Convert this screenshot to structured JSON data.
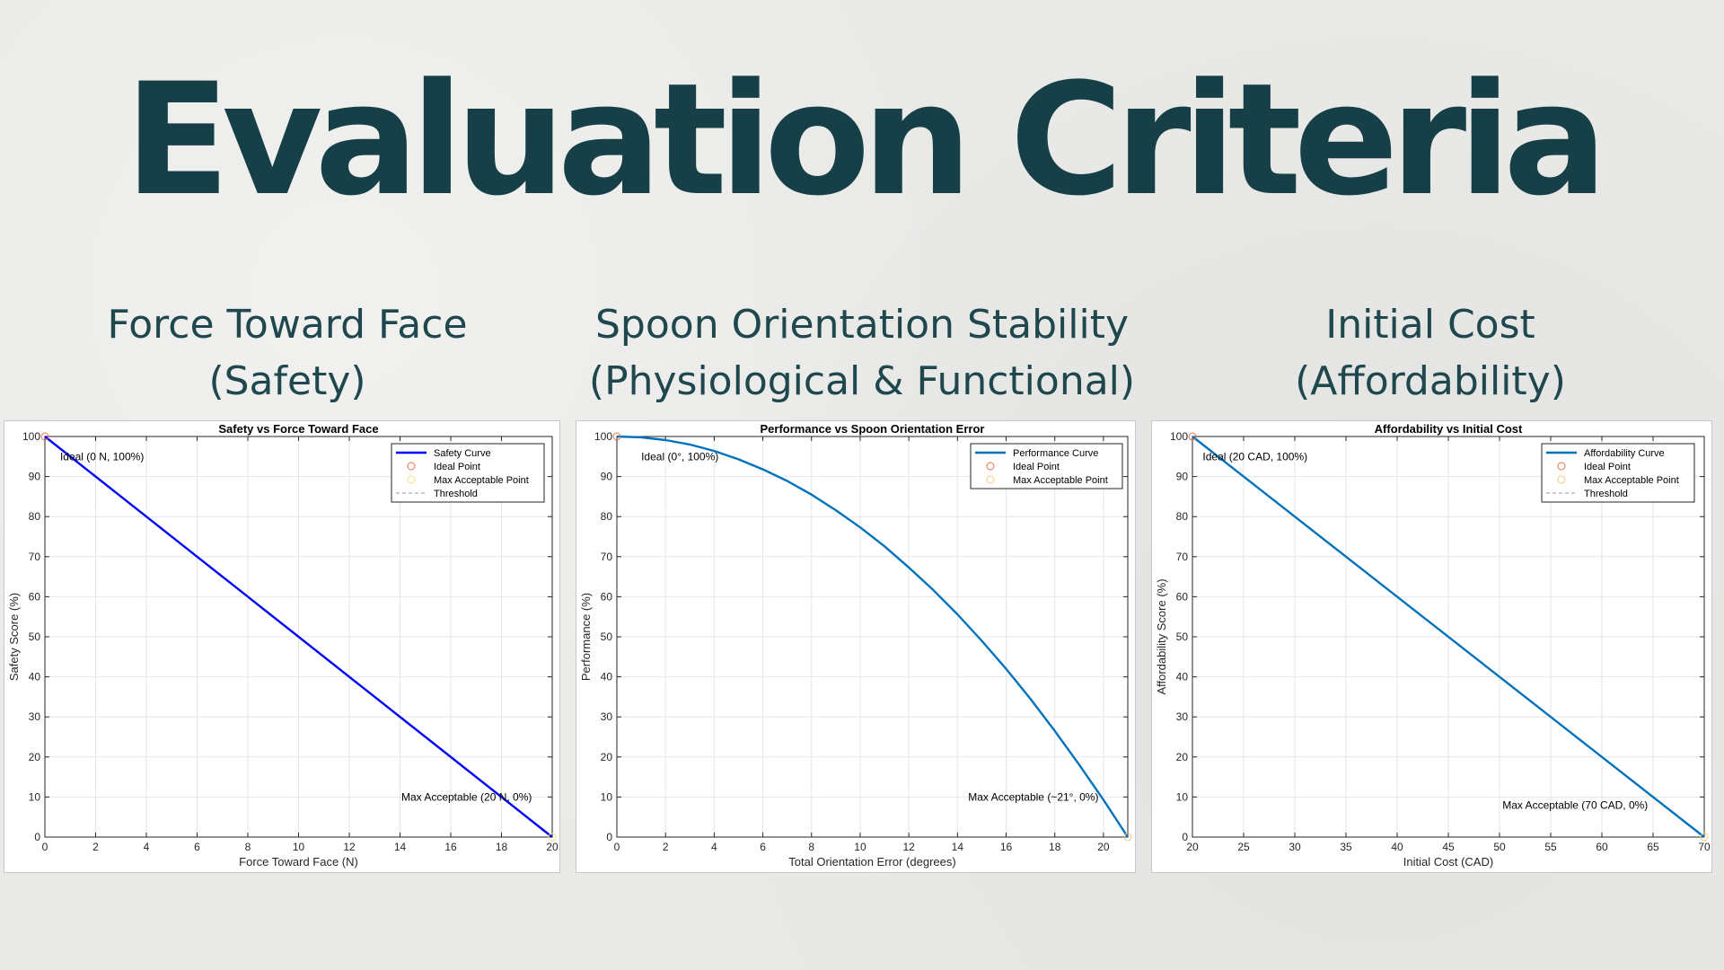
{
  "page": {
    "title": "Evaluation Criteria"
  },
  "panels": [
    {
      "title_line1": "Force Toward Face",
      "title_line2": "(Safety)"
    },
    {
      "title_line1": "Spoon Orientation Stability",
      "title_line2": "(Physiological & Functional)"
    },
    {
      "title_line1": "Initial Cost",
      "title_line2": "(Affordability)"
    }
  ],
  "chart_data": [
    {
      "type": "line",
      "title": "Safety vs Force Toward Face",
      "xlabel": "Force Toward Face (N)",
      "ylabel": "Safety Score (%)",
      "xlim": [
        0,
        20
      ],
      "ylim": [
        0,
        100
      ],
      "xticks": [
        0,
        2,
        4,
        6,
        8,
        10,
        12,
        14,
        16,
        18,
        20
      ],
      "yticks": [
        0,
        10,
        20,
        30,
        40,
        50,
        60,
        70,
        80,
        90,
        100
      ],
      "grid": true,
      "legend_position": "top-right",
      "legend": [
        {
          "label": "Safety Curve",
          "kind": "line",
          "color": "#0000ff"
        },
        {
          "label": "Ideal Point",
          "kind": "circle",
          "color": "#e8734a"
        },
        {
          "label": "Max Acceptable Point",
          "kind": "circle",
          "color": "#f2df7a"
        },
        {
          "label": "Threshold",
          "kind": "dash",
          "color": "#999999"
        }
      ],
      "series": [
        {
          "name": "Safety Curve",
          "color": "#0000ff",
          "x": [
            0,
            20
          ],
          "y": [
            100,
            0
          ]
        }
      ],
      "annotations": [
        {
          "text": "Ideal (0 N, 100%)",
          "x": 0.6,
          "y": 95,
          "anchor": "start"
        },
        {
          "text": "Max Acceptable (20 N, 0%)",
          "x": 19.2,
          "y": 10,
          "anchor": "end"
        }
      ],
      "points": [
        {
          "x": 0,
          "y": 100,
          "color": "#e8734a"
        },
        {
          "x": 20,
          "y": 0,
          "color": "#f2df7a"
        }
      ]
    },
    {
      "type": "line",
      "title": "Performance vs Spoon Orientation Error",
      "xlabel": "Total Orientation Error (degrees)",
      "ylabel": "Performance (%)",
      "xlim": [
        0,
        21
      ],
      "ylim": [
        0,
        100
      ],
      "xticks": [
        0,
        2,
        4,
        6,
        8,
        10,
        12,
        14,
        16,
        18,
        20
      ],
      "yticks": [
        0,
        10,
        20,
        30,
        40,
        50,
        60,
        70,
        80,
        90,
        100
      ],
      "grid": true,
      "legend_position": "top-right",
      "legend": [
        {
          "label": "Performance Curve",
          "kind": "line",
          "color": "#0072bd"
        },
        {
          "label": "Ideal Point",
          "kind": "circle",
          "color": "#e8734a"
        },
        {
          "label": "Max Acceptable Point",
          "kind": "circle",
          "color": "#f2c879"
        }
      ],
      "series": [
        {
          "name": "Performance Curve",
          "color": "#0072bd",
          "x": [
            0,
            1,
            2,
            3,
            4,
            5,
            6,
            7,
            8,
            9,
            10,
            11,
            12,
            13,
            14,
            15,
            16,
            17,
            18,
            19,
            20,
            21
          ],
          "y": [
            100,
            99.8,
            99.1,
            98.0,
            96.4,
            94.3,
            91.8,
            88.9,
            85.5,
            81.6,
            77.3,
            72.6,
            67.3,
            61.7,
            55.6,
            49.0,
            42.0,
            34.5,
            26.5,
            18.1,
            9.3,
            0
          ]
        }
      ],
      "annotations": [
        {
          "text": "Ideal (0°, 100%)",
          "x": 1.0,
          "y": 95,
          "anchor": "start"
        },
        {
          "text": "Max Acceptable (~21°, 0%)",
          "x": 19.8,
          "y": 10,
          "anchor": "end"
        }
      ],
      "points": [
        {
          "x": 0,
          "y": 100,
          "color": "#e8734a"
        },
        {
          "x": 21,
          "y": 0,
          "color": "#f2c879"
        }
      ]
    },
    {
      "type": "line",
      "title": "Affordability vs Initial Cost",
      "xlabel": "Initial Cost (CAD)",
      "ylabel": "Affordability Score (%)",
      "xlim": [
        20,
        70
      ],
      "ylim": [
        0,
        100
      ],
      "xticks": [
        20,
        25,
        30,
        35,
        40,
        45,
        50,
        55,
        60,
        65,
        70
      ],
      "yticks": [
        0,
        10,
        20,
        30,
        40,
        50,
        60,
        70,
        80,
        90,
        100
      ],
      "grid": true,
      "legend_position": "top-right",
      "legend": [
        {
          "label": "Affordability Curve",
          "kind": "line",
          "color": "#0072bd"
        },
        {
          "label": "Ideal Point",
          "kind": "circle",
          "color": "#e8734a"
        },
        {
          "label": "Max Acceptable Point",
          "kind": "circle",
          "color": "#f2c879"
        },
        {
          "label": "Threshold",
          "kind": "dash",
          "color": "#999999"
        }
      ],
      "series": [
        {
          "name": "Affordability Curve",
          "color": "#0072bd",
          "x": [
            20,
            70
          ],
          "y": [
            100,
            0
          ]
        }
      ],
      "annotations": [
        {
          "text": "Ideal (20 CAD, 100%)",
          "x": 21.0,
          "y": 95,
          "anchor": "start"
        },
        {
          "text": "Max Acceptable (70 CAD, 0%)",
          "x": 64.5,
          "y": 8,
          "anchor": "end"
        }
      ],
      "points": [
        {
          "x": 20,
          "y": 100,
          "color": "#e8734a"
        },
        {
          "x": 70,
          "y": 0,
          "color": "#f2c879"
        }
      ]
    }
  ]
}
